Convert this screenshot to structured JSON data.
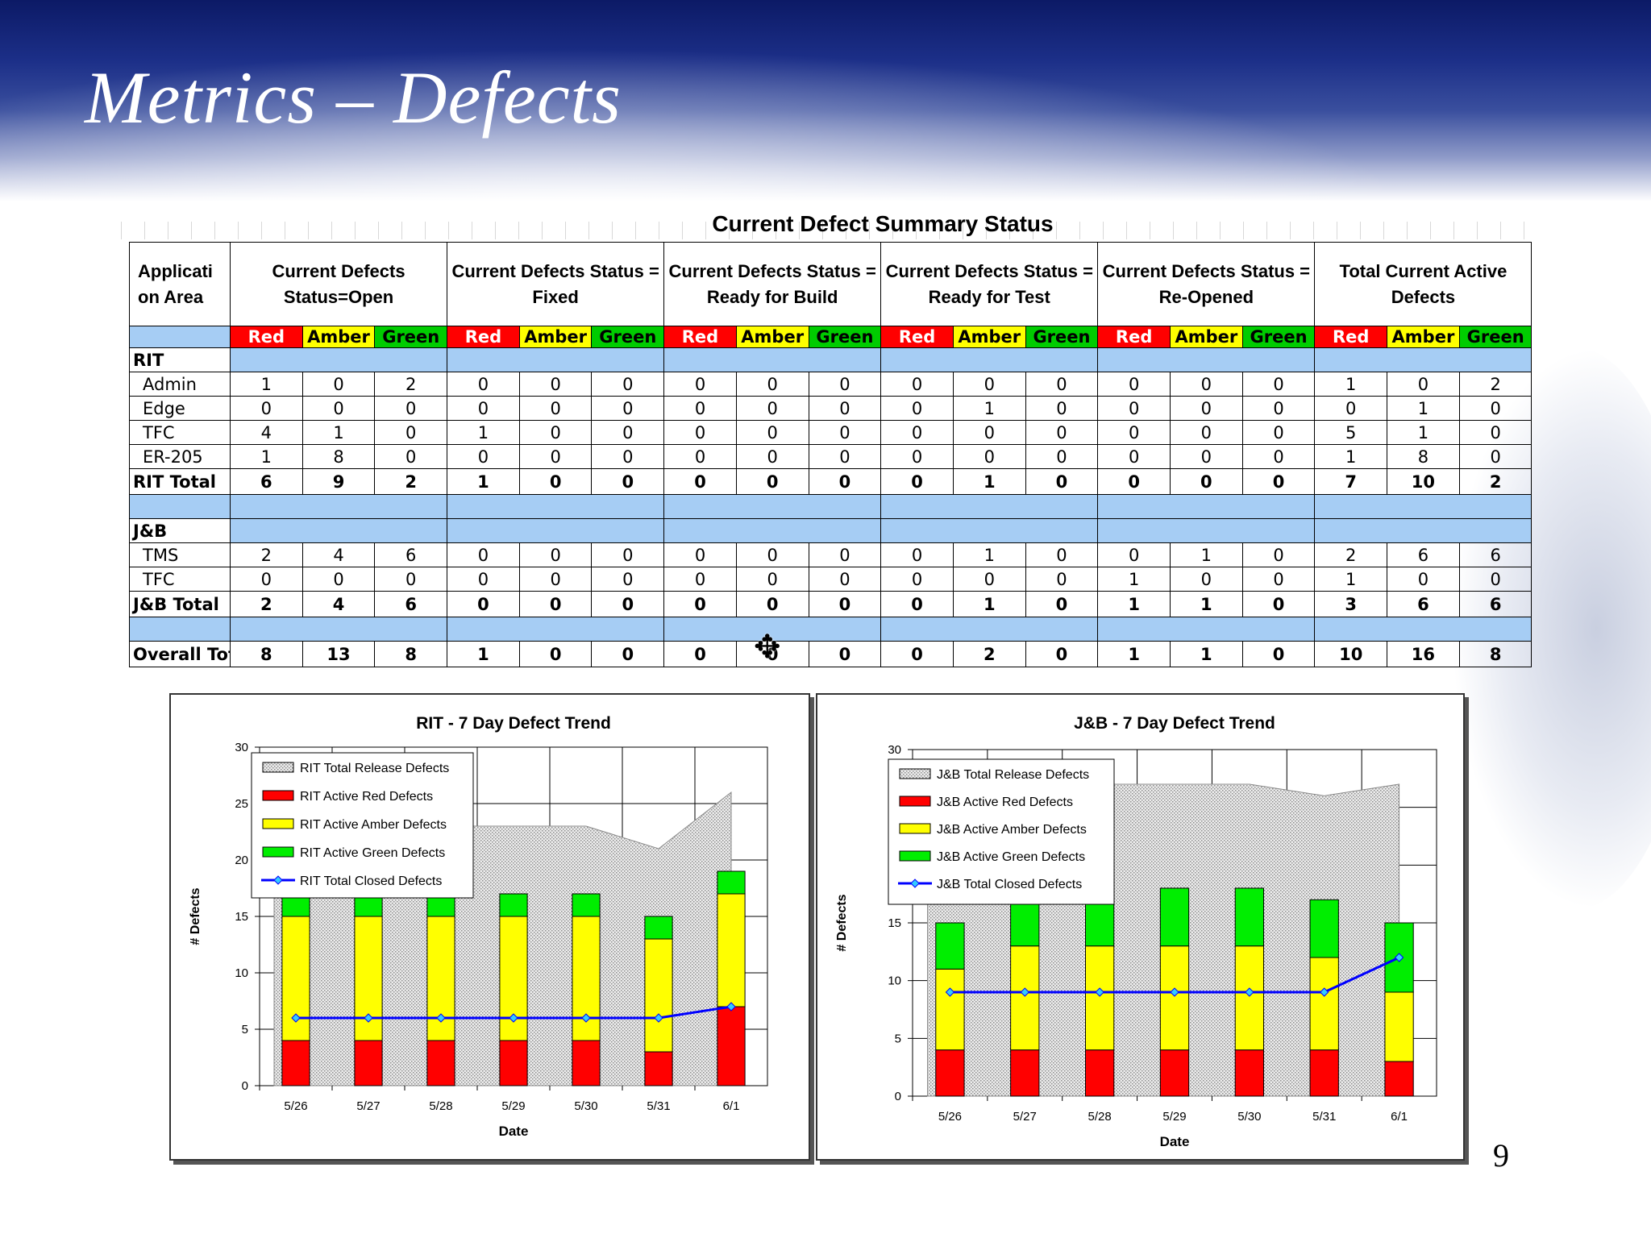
{
  "slide": {
    "title": "Metrics – Defects",
    "page_number": "9"
  },
  "table": {
    "title": "Current Defect Summary Status",
    "app_header": "Applicati on Area",
    "groups": [
      "Current Defects Status=Open",
      "Current Defects Status = Fixed",
      "Current Defects Status = Ready for Build",
      "Current Defects Status = Ready for Test",
      "Current Defects Status = Re-Opened",
      "Total Current Active Defects"
    ],
    "rag": [
      "Red",
      "Amber",
      "Green"
    ],
    "colors": {
      "red": "#ff0000",
      "amber": "#ffff00",
      "green": "#00cc00",
      "band": "#a6cdf4"
    },
    "sections": [
      {
        "name": "RIT",
        "rows": [
          {
            "name": "Admin",
            "values": [
              1,
              0,
              2,
              0,
              0,
              0,
              0,
              0,
              0,
              0,
              0,
              0,
              0,
              0,
              0,
              1,
              0,
              2
            ]
          },
          {
            "name": "Edge",
            "values": [
              0,
              0,
              0,
              0,
              0,
              0,
              0,
              0,
              0,
              0,
              1,
              0,
              0,
              0,
              0,
              0,
              1,
              0
            ]
          },
          {
            "name": "TFC",
            "values": [
              4,
              1,
              0,
              1,
              0,
              0,
              0,
              0,
              0,
              0,
              0,
              0,
              0,
              0,
              0,
              5,
              1,
              0
            ]
          },
          {
            "name": "ER-205",
            "values": [
              1,
              8,
              0,
              0,
              0,
              0,
              0,
              0,
              0,
              0,
              0,
              0,
              0,
              0,
              0,
              1,
              8,
              0
            ]
          }
        ],
        "total": {
          "name": "RIT Total",
          "values": [
            6,
            9,
            2,
            1,
            0,
            0,
            0,
            0,
            0,
            0,
            1,
            0,
            0,
            0,
            0,
            7,
            10,
            2
          ]
        }
      },
      {
        "name": "J&B",
        "rows": [
          {
            "name": "TMS",
            "values": [
              2,
              4,
              6,
              0,
              0,
              0,
              0,
              0,
              0,
              0,
              1,
              0,
              0,
              1,
              0,
              2,
              6,
              6
            ]
          },
          {
            "name": "TFC",
            "values": [
              0,
              0,
              0,
              0,
              0,
              0,
              0,
              0,
              0,
              0,
              0,
              0,
              1,
              0,
              0,
              1,
              0,
              0
            ]
          }
        ],
        "total": {
          "name": "J&B Total",
          "values": [
            2,
            4,
            6,
            0,
            0,
            0,
            0,
            0,
            0,
            0,
            1,
            0,
            1,
            1,
            0,
            3,
            6,
            6
          ]
        }
      }
    ],
    "overall": {
      "name": "Overall Tot",
      "values": [
        8,
        13,
        8,
        1,
        0,
        0,
        0,
        0,
        0,
        0,
        2,
        0,
        1,
        1,
        0,
        10,
        16,
        8
      ]
    }
  },
  "chart_data": [
    {
      "type": "bar",
      "title": "RIT - 7 Day Defect Trend",
      "xlabel": "Date",
      "ylabel": "# Defects",
      "ylim": [
        0,
        30
      ],
      "yticks": [
        0,
        5,
        10,
        15,
        20,
        25,
        30
      ],
      "grid": true,
      "legend_position": "top-left",
      "categories": [
        "5/26",
        "5/27",
        "5/28",
        "5/29",
        "5/30",
        "5/31",
        "6/1"
      ],
      "series": [
        {
          "name": "RIT Total Release Defects",
          "kind": "area",
          "color": "#d9d9d9",
          "values": [
            23,
            23,
            23,
            23,
            23,
            21,
            26
          ]
        },
        {
          "name": "RIT Active Red Defects",
          "kind": "stacked-bar",
          "color": "#ff0000",
          "values": [
            4,
            4,
            4,
            4,
            4,
            3,
            7
          ]
        },
        {
          "name": "RIT Active Amber Defects",
          "kind": "stacked-bar",
          "color": "#ffff00",
          "values": [
            11,
            11,
            11,
            11,
            11,
            10,
            10
          ]
        },
        {
          "name": "RIT Active Green Defects",
          "kind": "stacked-bar",
          "color": "#00ee00",
          "values": [
            2,
            2,
            2,
            2,
            2,
            2,
            2
          ]
        },
        {
          "name": "RIT Total Closed Defects",
          "kind": "line",
          "color": "#0000ff",
          "values": [
            6,
            6,
            6,
            6,
            6,
            6,
            7
          ]
        }
      ]
    },
    {
      "type": "bar",
      "title": "J&B - 7 Day Defect Trend",
      "xlabel": "Date",
      "ylabel": "# Defects",
      "ylim": [
        0,
        30
      ],
      "yticks": [
        0,
        5,
        10,
        15,
        20,
        25,
        30
      ],
      "grid": true,
      "legend_position": "top-left",
      "categories": [
        "5/26",
        "5/27",
        "5/28",
        "5/29",
        "5/30",
        "5/31",
        "6/1"
      ],
      "series": [
        {
          "name": "J&B Total Release Defects",
          "kind": "area",
          "color": "#d9d9d9",
          "values": [
            27,
            27,
            27,
            27,
            27,
            26,
            27
          ]
        },
        {
          "name": "J&B Active Red Defects",
          "kind": "stacked-bar",
          "color": "#ff0000",
          "values": [
            4,
            4,
            4,
            4,
            4,
            4,
            3
          ]
        },
        {
          "name": "J&B Active Amber Defects",
          "kind": "stacked-bar",
          "color": "#ffff00",
          "values": [
            7,
            9,
            9,
            9,
            9,
            8,
            6
          ]
        },
        {
          "name": "J&B Active Green Defects",
          "kind": "stacked-bar",
          "color": "#00ee00",
          "values": [
            4,
            5,
            5,
            5,
            5,
            5,
            6
          ]
        },
        {
          "name": "J&B Total Closed Defects",
          "kind": "line",
          "color": "#0000ff",
          "values": [
            9,
            9,
            9,
            9,
            9,
            9,
            12
          ]
        }
      ]
    }
  ]
}
